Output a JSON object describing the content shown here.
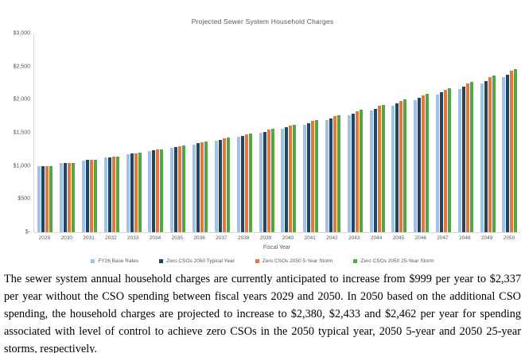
{
  "chart": {
    "title": "Projected Sewer System Household Charges",
    "x_axis_title": "Fiscal Year",
    "y_ticks": [
      "$3,000",
      "$2,500",
      "$2,000",
      "$1,500",
      "$1,000",
      "$500",
      "$-"
    ],
    "axis_line_color": "#d9d9d9",
    "label_color": "#595959"
  },
  "chart_data": {
    "type": "bar",
    "title": "Projected Sewer System Household Charges",
    "xlabel": "Fiscal Year",
    "ylabel": "",
    "ylim": [
      0,
      3000
    ],
    "y_tick_step": 500,
    "grid": false,
    "legend_position": "bottom",
    "categories": [
      "2029",
      "2030",
      "2031",
      "2032",
      "2033",
      "2034",
      "2035",
      "2036",
      "2037",
      "2038",
      "2039",
      "2040",
      "2041",
      "2042",
      "2043",
      "2044",
      "2045",
      "2046",
      "2047",
      "2048",
      "2049",
      "2050"
    ],
    "series": [
      {
        "name": "FY26 Base Rates",
        "color": "#9DC3E6",
        "values": [
          999,
          1040,
          1083,
          1128,
          1175,
          1223,
          1274,
          1326,
          1381,
          1438,
          1498,
          1560,
          1624,
          1691,
          1761,
          1834,
          1910,
          1989,
          2071,
          2156,
          2245,
          2337
        ]
      },
      {
        "name": "Zero CSOs 2050 Typical Year",
        "color": "#24455F",
        "values": [
          999,
          1042,
          1087,
          1134,
          1183,
          1233,
          1286,
          1340,
          1397,
          1456,
          1518,
          1583,
          1649,
          1718,
          1790,
          1865,
          1943,
          2024,
          2108,
          2195,
          2286,
          2380
        ]
      },
      {
        "name": "Zero CSOs 2050 5-Year Storm",
        "color": "#E0793A",
        "values": [
          999,
          1045,
          1092,
          1142,
          1193,
          1246,
          1301,
          1358,
          1418,
          1479,
          1544,
          1610,
          1679,
          1750,
          1825,
          1903,
          1983,
          2067,
          2153,
          2243,
          2336,
          2433
        ]
      },
      {
        "name": "Zero CSOs 2050 25-Year Storm",
        "color": "#55A546",
        "values": [
          999,
          1046,
          1095,
          1146,
          1199,
          1253,
          1310,
          1368,
          1429,
          1492,
          1558,
          1625,
          1695,
          1768,
          1844,
          1923,
          2005,
          2090,
          2178,
          2269,
          2364,
          2462
        ]
      }
    ]
  },
  "caption": {
    "text": "The sewer system annual household charges are currently anticipated to increase from $999 per year to $2,337 per year without the CSO spending between fiscal years 2029 and 2050.  In 2050 based on the additional CSO spending, the household charges are projected to increase to $2,380, $2,433 and $2,462 per year for spending associated with level of control to achieve zero CSOs in the 2050 typical year, 2050 5-year and 2050 25-year storms, respectively."
  }
}
